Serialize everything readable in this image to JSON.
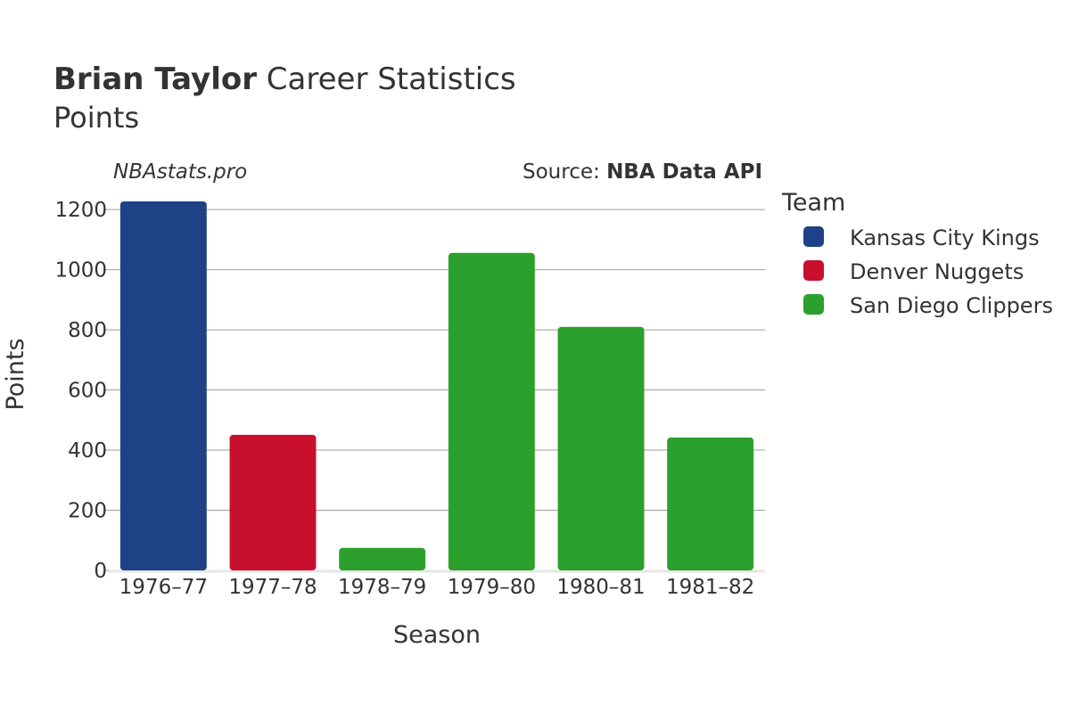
{
  "title": {
    "player": "Brian Taylor",
    "rest": "Career Statistics",
    "subtitle": "Points"
  },
  "watermark": "NBAstats.pro",
  "source": {
    "prefix": "Source: ",
    "name": "NBA Data API"
  },
  "legend": {
    "title": "Team",
    "items": [
      {
        "label": "Kansas City Kings",
        "color": "#1f4287"
      },
      {
        "label": "Denver Nuggets",
        "color": "#c8102e"
      },
      {
        "label": "San Diego Clippers",
        "color": "#2ca02c"
      }
    ]
  },
  "chart_data": {
    "type": "bar",
    "title": "Brian Taylor Career Statistics",
    "subtitle": "Points",
    "xlabel": "Season",
    "ylabel": "Points",
    "ylim": [
      0,
      1230
    ],
    "yticks": [
      0,
      200,
      400,
      600,
      800,
      1000,
      1200
    ],
    "grid": true,
    "legend_position": "right",
    "categories": [
      "1976–77",
      "1977–78",
      "1978–79",
      "1979–80",
      "1980–81",
      "1981–82"
    ],
    "bars": [
      {
        "season": "1976–77",
        "team": "Kansas City Kings",
        "value": 1227,
        "color": "#1f4287"
      },
      {
        "season": "1977–78",
        "team": "Denver Nuggets",
        "value": 451,
        "color": "#c8102e"
      },
      {
        "season": "1978–79",
        "team": "San Diego Clippers",
        "value": 75,
        "color": "#2ca02c"
      },
      {
        "season": "1979–80",
        "team": "San Diego Clippers",
        "value": 1056,
        "color": "#2ca02c"
      },
      {
        "season": "1980–81",
        "team": "San Diego Clippers",
        "value": 810,
        "color": "#2ca02c"
      },
      {
        "season": "1981–82",
        "team": "San Diego Clippers",
        "value": 442,
        "color": "#2ca02c"
      }
    ]
  }
}
